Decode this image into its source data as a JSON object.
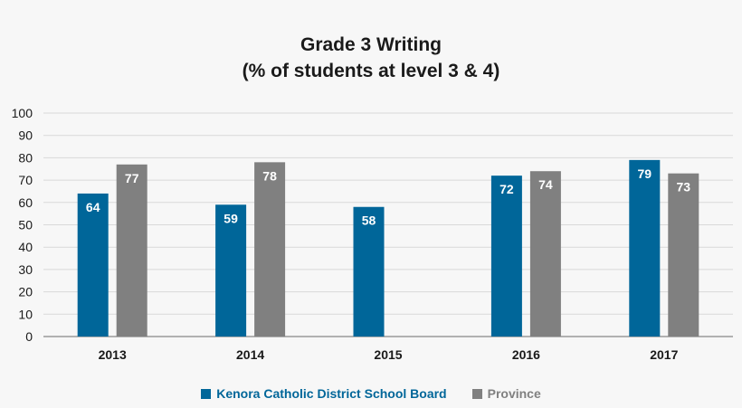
{
  "chart_data": {
    "type": "bar",
    "title": "Grade 3 Writing",
    "subtitle": "(% of students at level 3 & 4)",
    "categories": [
      "2013",
      "2014",
      "2015",
      "2016",
      "2017"
    ],
    "series": [
      {
        "name": "Kenora Catholic District School Board",
        "color": "#006699",
        "values": [
          64,
          59,
          58,
          72,
          79
        ]
      },
      {
        "name": "Province",
        "color": "#808080",
        "values": [
          77,
          78,
          null,
          74,
          73
        ]
      }
    ],
    "ylim": [
      0,
      100
    ],
    "yticks": [
      "0",
      "10",
      "20",
      "30",
      "40",
      "50",
      "60",
      "70",
      "80",
      "90",
      "100"
    ],
    "grid": true,
    "legend_position": "bottom",
    "data_labels": true,
    "colors": {
      "grid": "#d9d9d9",
      "axis": "#9a9a9a",
      "label_text": "#ffffff",
      "tick_text": "#1a1a1a"
    }
  }
}
